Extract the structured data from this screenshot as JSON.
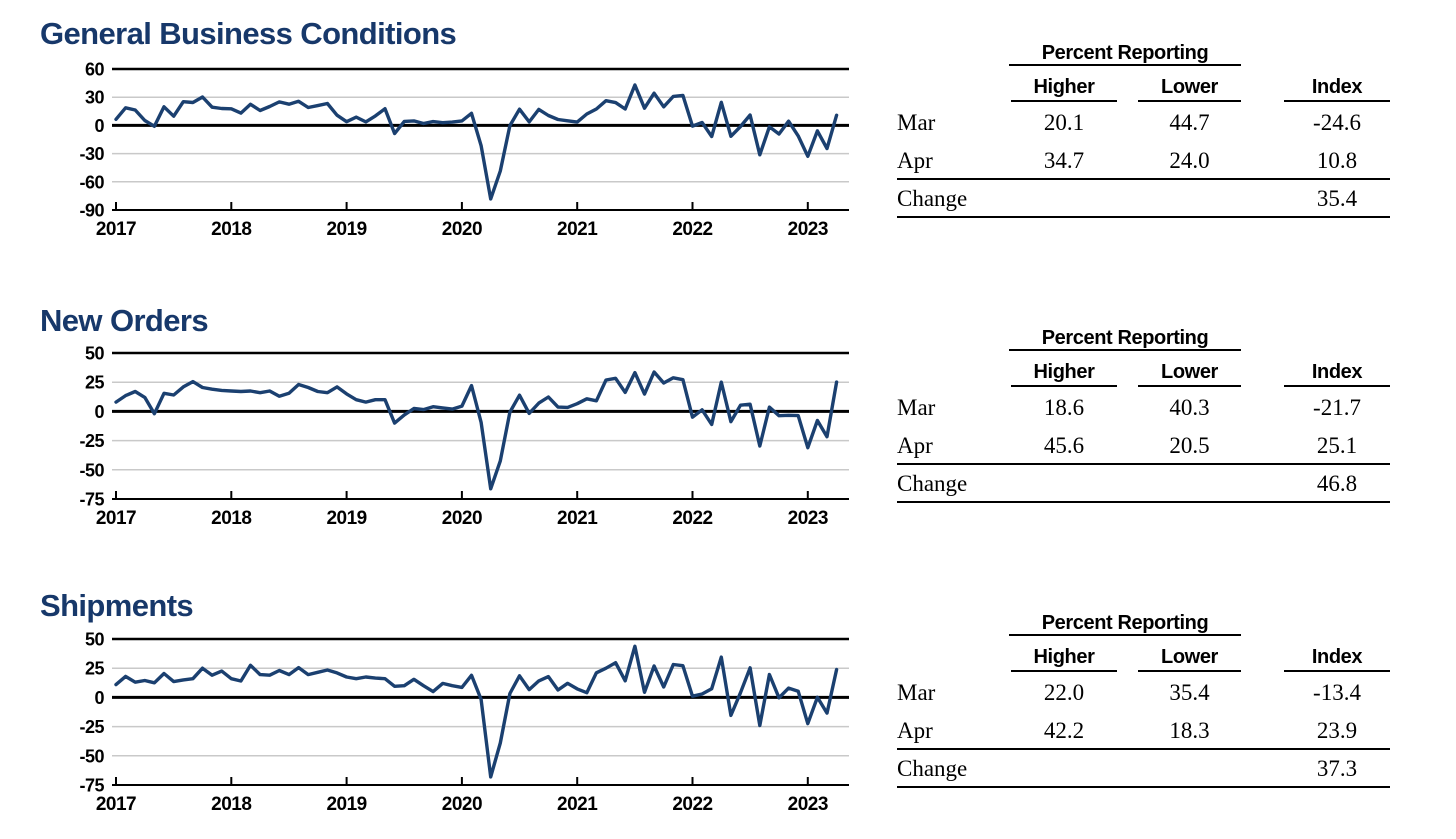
{
  "colors": {
    "title_navy": "#17386a",
    "line_navy": "#1b4070",
    "grid_gray": "#c9c9c9",
    "axis_black": "#000000"
  },
  "chart_data": [
    {
      "type": "line",
      "title": "General Business Conditions",
      "x_ticks": [
        "2017",
        "2018",
        "2019",
        "2020",
        "2021",
        "2022",
        "2023"
      ],
      "x_start": "2017-01",
      "x_end": "2023-04",
      "x_frequency": "monthly",
      "y_ticks": [
        60,
        30,
        0,
        -30,
        -60,
        -90
      ],
      "ylim": [
        -90,
        60
      ],
      "grid": "horizontal",
      "legend": "none",
      "line_color": "#1b4070",
      "values": [
        6.5,
        18.7,
        16.4,
        5.2,
        -1.0,
        19.8,
        9.8,
        25.2,
        24.4,
        30.2,
        19.4,
        18.0,
        17.7,
        13.1,
        22.5,
        15.8,
        20.1,
        25.0,
        22.6,
        25.6,
        19.0,
        21.1,
        23.3,
        10.9,
        3.9,
        8.8,
        3.7,
        10.1,
        17.8,
        -8.6,
        4.3,
        4.8,
        2.0,
        4.0,
        2.9,
        3.5,
        4.8,
        12.9,
        -21.5,
        -78.2,
        -48.5,
        -0.2,
        17.2,
        3.7,
        17.0,
        10.5,
        6.3,
        4.9,
        3.5,
        12.1,
        17.4,
        26.3,
        24.3,
        17.4,
        43.0,
        18.3,
        34.3,
        19.8,
        30.9,
        31.9,
        -0.7,
        3.1,
        -11.8,
        24.6,
        -11.6,
        -1.2,
        11.1,
        -31.3,
        -1.5,
        -9.1,
        4.5,
        -11.2,
        -32.9,
        -5.8,
        -24.6,
        10.8
      ]
    },
    {
      "type": "line",
      "title": "New Orders",
      "x_ticks": [
        "2017",
        "2018",
        "2019",
        "2020",
        "2021",
        "2022",
        "2023"
      ],
      "x_start": "2017-01",
      "x_end": "2023-04",
      "x_frequency": "monthly",
      "y_ticks": [
        50,
        25,
        0,
        -25,
        -50,
        -75
      ],
      "ylim": [
        -75,
        50
      ],
      "grid": "horizontal",
      "legend": "none",
      "line_color": "#1b4070",
      "values": [
        8.0,
        13.5,
        17.0,
        12.0,
        -2.0,
        15.5,
        14.0,
        21.0,
        25.5,
        20.5,
        19.0,
        18.0,
        17.5,
        17.0,
        17.5,
        16.0,
        17.5,
        13.0,
        15.5,
        23.0,
        20.5,
        17.0,
        16.0,
        21.0,
        15.0,
        10.0,
        8.0,
        10.0,
        10.0,
        -10.0,
        -3.0,
        2.5,
        1.5,
        4.0,
        3.0,
        2.0,
        4.5,
        22.1,
        -9.3,
        -66.3,
        -42.4,
        -0.6,
        13.9,
        -1.7,
        7.1,
        12.3,
        3.7,
        3.4,
        6.6,
        10.8,
        9.1,
        26.9,
        28.3,
        16.3,
        33.2,
        14.8,
        33.7,
        24.3,
        28.8,
        27.1,
        -5.0,
        1.4,
        -11.2,
        25.1,
        -8.8,
        5.3,
        6.2,
        -29.6,
        3.7,
        -3.7,
        -3.3,
        -3.6,
        -31.1,
        -7.8,
        -21.7,
        25.1
      ]
    },
    {
      "type": "line",
      "title": "Shipments",
      "x_ticks": [
        "2017",
        "2018",
        "2019",
        "2020",
        "2021",
        "2022",
        "2023"
      ],
      "x_start": "2017-01",
      "x_end": "2023-04",
      "x_frequency": "monthly",
      "y_ticks": [
        50,
        25,
        0,
        -25,
        -50,
        -75
      ],
      "ylim": [
        -75,
        50
      ],
      "grid": "horizontal",
      "legend": "none",
      "line_color": "#1b4070",
      "values": [
        11.0,
        18.0,
        13.0,
        14.5,
        12.5,
        20.5,
        13.5,
        15.0,
        16.0,
        25.0,
        19.0,
        22.5,
        16.0,
        14.0,
        27.5,
        19.5,
        19.0,
        23.0,
        19.5,
        25.5,
        19.5,
        21.5,
        23.5,
        21.0,
        17.5,
        16.0,
        17.5,
        16.5,
        16.0,
        9.5,
        10.0,
        15.5,
        10.0,
        5.0,
        12.0,
        10.0,
        8.6,
        18.9,
        -1.7,
        -68.1,
        -39.0,
        3.3,
        18.5,
        6.7,
        14.1,
        17.8,
        6.3,
        12.1,
        7.3,
        4.0,
        21.1,
        25.0,
        29.7,
        14.2,
        43.8,
        4.4,
        26.9,
        8.9,
        28.2,
        27.1,
        1.0,
        2.9,
        7.4,
        34.5,
        -15.4,
        4.0,
        25.3,
        -24.1,
        19.6,
        -0.3,
        8.0,
        5.3,
        -22.4,
        0.1,
        -13.4,
        23.9
      ]
    }
  ],
  "tables": [
    {
      "group_header": "Percent Reporting",
      "col_headers": [
        "Higher",
        "Lower",
        "Index"
      ],
      "rows": [
        {
          "label": "Mar",
          "higher": "20.1",
          "lower": "44.7",
          "index": "-24.6"
        },
        {
          "label": "Apr",
          "higher": "34.7",
          "lower": "24.0",
          "index": "10.8"
        },
        {
          "label": "Change",
          "higher": "",
          "lower": "",
          "index": "35.4"
        }
      ]
    },
    {
      "group_header": "Percent Reporting",
      "col_headers": [
        "Higher",
        "Lower",
        "Index"
      ],
      "rows": [
        {
          "label": "Mar",
          "higher": "18.6",
          "lower": "40.3",
          "index": "-21.7"
        },
        {
          "label": "Apr",
          "higher": "45.6",
          "lower": "20.5",
          "index": "25.1"
        },
        {
          "label": "Change",
          "higher": "",
          "lower": "",
          "index": "46.8"
        }
      ]
    },
    {
      "group_header": "Percent Reporting",
      "col_headers": [
        "Higher",
        "Lower",
        "Index"
      ],
      "rows": [
        {
          "label": "Mar",
          "higher": "22.0",
          "lower": "35.4",
          "index": "-13.4"
        },
        {
          "label": "Apr",
          "higher": "42.2",
          "lower": "18.3",
          "index": "23.9"
        },
        {
          "label": "Change",
          "higher": "",
          "lower": "",
          "index": "37.3"
        }
      ]
    }
  ]
}
